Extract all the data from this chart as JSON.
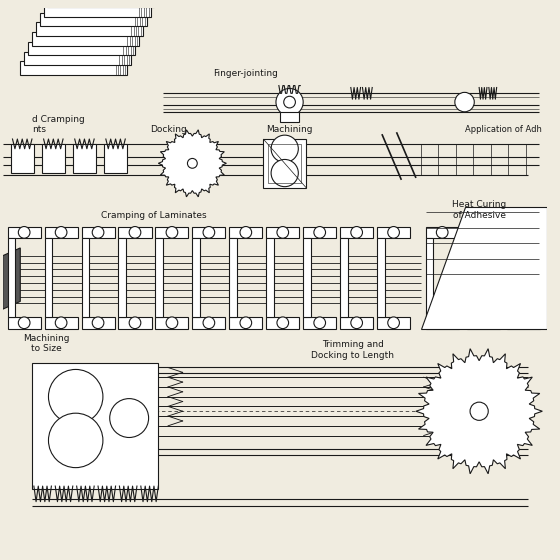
{
  "bg_color": "#f0ece0",
  "line_color": "#1a1a1a",
  "labels": {
    "finger_jointing": "Finger-jointing",
    "docking": "Docking",
    "machining": "Machining",
    "application": "Application of Adh",
    "cramping": "Cramping of Laminates",
    "heat_curing": "Heat Curing\nof Adhesive",
    "machining2": "Machining\nto Size",
    "trimming": "Trimming and\nDocking to Length",
    "cramping_label": "d Cramping\nnts"
  },
  "fontsize": 6.5,
  "lw": 0.8
}
